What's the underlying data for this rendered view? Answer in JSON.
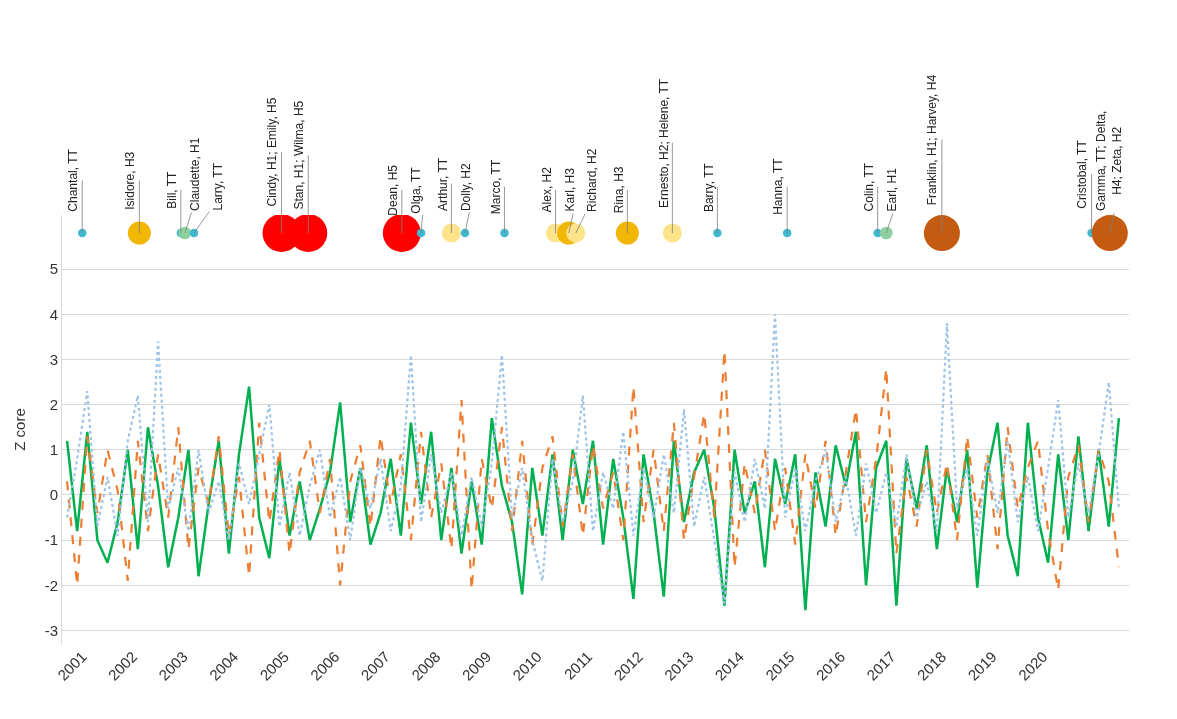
{
  "chart_data": {
    "type": "line",
    "ylabel": "Z core",
    "x": [
      2000.7,
      2000.9,
      2001.1,
      2001.3,
      2001.5,
      2001.7,
      2001.9,
      2002.1,
      2002.3,
      2002.5,
      2002.7,
      2002.9,
      2003.1,
      2003.3,
      2003.5,
      2003.7,
      2003.9,
      2004.1,
      2004.3,
      2004.5,
      2004.7,
      2004.9,
      2005.1,
      2005.3,
      2005.5,
      2005.7,
      2005.9,
      2006.1,
      2006.3,
      2006.5,
      2006.7,
      2006.9,
      2007.1,
      2007.3,
      2007.5,
      2007.7,
      2007.9,
      2008.1,
      2008.3,
      2008.5,
      2008.7,
      2008.9,
      2009.1,
      2009.3,
      2009.5,
      2009.7,
      2009.9,
      2010.1,
      2010.3,
      2010.5,
      2010.7,
      2010.9,
      2011.1,
      2011.3,
      2011.5,
      2011.7,
      2011.9,
      2012.1,
      2012.3,
      2012.5,
      2012.7,
      2012.9,
      2013.1,
      2013.3,
      2013.5,
      2013.7,
      2013.9,
      2014.1,
      2014.3,
      2014.5,
      2014.7,
      2014.9,
      2015.1,
      2015.3,
      2015.5,
      2015.7,
      2015.9,
      2016.1,
      2016.3,
      2016.5,
      2016.7,
      2016.9,
      2017.1,
      2017.3,
      2017.5,
      2017.7,
      2017.9,
      2018.1,
      2018.3,
      2018.5,
      2018.7,
      2018.9,
      2019.1,
      2019.3,
      2019.5,
      2019.7,
      2019.9,
      2020.1,
      2020.3,
      2020.5,
      2020.7,
      2020.9,
      2021.1,
      2021.3,
      2021.5
    ],
    "series": [
      {
        "color": "#00b050",
        "line_style": "solid",
        "values": [
          1.2,
          -0.8,
          1.4,
          -1.0,
          -1.5,
          -0.6,
          1.0,
          -1.2,
          1.5,
          0.2,
          -1.6,
          -0.5,
          1.0,
          -1.8,
          -0.2,
          1.2,
          -1.3,
          0.9,
          2.4,
          -0.5,
          -1.4,
          0.8,
          -0.9,
          0.3,
          -1.0,
          -0.3,
          0.5,
          2.05,
          -0.6,
          0.6,
          -1.1,
          -0.4,
          0.8,
          -0.9,
          1.6,
          -0.2,
          1.4,
          -1.0,
          0.6,
          -1.3,
          0.3,
          -1.1,
          1.7,
          0.2,
          -0.6,
          -2.2,
          0.6,
          -0.9,
          0.9,
          -1.0,
          1.0,
          -0.2,
          1.2,
          -1.1,
          0.8,
          -0.5,
          -2.3,
          0.9,
          -0.4,
          -2.25,
          1.2,
          -0.6,
          0.5,
          1.0,
          -0.3,
          -2.45,
          1.0,
          -0.4,
          0.3,
          -1.6,
          0.8,
          -0.2,
          0.9,
          -2.55,
          0.5,
          -0.7,
          1.1,
          0.2,
          1.4,
          -2.0,
          0.6,
          1.2,
          -2.45,
          0.8,
          -0.3,
          1.1,
          -1.2,
          0.6,
          -0.6,
          1.0,
          -2.05,
          0.5,
          1.6,
          -0.9,
          -1.8,
          1.6,
          -0.5,
          -1.5,
          0.9,
          -1.0,
          1.3,
          -0.8,
          1.0,
          -0.7,
          1.7
        ]
      },
      {
        "color": "#ed7d31",
        "line_style": "dashed",
        "values": [
          0.3,
          -2.0,
          1.3,
          -0.4,
          1.0,
          0.1,
          -1.9,
          1.2,
          -0.8,
          0.9,
          -0.5,
          1.5,
          -1.2,
          0.6,
          -0.2,
          1.3,
          -0.9,
          0.4,
          -1.8,
          1.6,
          -0.6,
          1.0,
          -1.3,
          0.5,
          1.2,
          -0.4,
          0.8,
          -2.0,
          0.3,
          1.1,
          -0.7,
          1.3,
          -0.2,
          0.9,
          -1.0,
          1.4,
          -0.5,
          0.7,
          -1.2,
          2.1,
          -2.1,
          0.8,
          -0.3,
          1.5,
          -0.8,
          1.2,
          -1.1,
          0.6,
          1.3,
          -0.7,
          0.9,
          -0.9,
          1.1,
          -0.3,
          0.5,
          -1.0,
          2.4,
          -0.6,
          1.0,
          -0.8,
          1.6,
          -1.0,
          0.4,
          1.8,
          -0.5,
          3.2,
          -1.6,
          0.7,
          -0.4,
          1.0,
          -0.8,
          0.6,
          -1.1,
          0.9,
          -0.3,
          1.2,
          -0.9,
          0.5,
          1.9,
          -0.6,
          0.8,
          2.8,
          -1.3,
          0.4,
          -0.7,
          1.0,
          -0.4,
          0.7,
          -1.0,
          1.3,
          -0.5,
          0.9,
          -1.2,
          1.5,
          -0.3,
          0.6,
          1.2,
          -0.8,
          -2.1,
          0.4,
          1.1,
          -0.6,
          1.0,
          0.3,
          -1.6
        ]
      },
      {
        "color": "#9dc3e6",
        "line_style": "dotted",
        "values": [
          -0.5,
          0.8,
          2.3,
          -0.7,
          0.4,
          -0.9,
          1.2,
          2.2,
          -0.6,
          3.4,
          -0.3,
          0.6,
          -0.8,
          1.0,
          -0.4,
          0.3,
          -1.0,
          0.7,
          -0.2,
          0.9,
          2.0,
          -0.7,
          0.5,
          -0.9,
          0.2,
          1.0,
          -0.5,
          0.4,
          -1.0,
          0.6,
          -0.3,
          0.8,
          -0.8,
          0.2,
          3.1,
          -0.6,
          0.9,
          -0.4,
          0.5,
          -0.9,
          0.4,
          -0.7,
          0.7,
          3.1,
          -0.5,
          0.6,
          -1.0,
          -1.9,
          0.8,
          -0.6,
          0.3,
          2.2,
          -0.8,
          0.5,
          -0.3,
          1.4,
          -0.9,
          0.6,
          -0.5,
          0.9,
          -0.4,
          1.9,
          -0.7,
          0.4,
          -1.0,
          -2.4,
          0.5,
          -0.6,
          0.8,
          -0.3,
          4.0,
          -0.5,
          0.6,
          -0.8,
          0.3,
          1.0,
          -0.6,
          0.4,
          -0.9,
          0.7,
          -0.4,
          0.5,
          -0.7,
          0.9,
          -0.5,
          0.3,
          -0.8,
          3.8,
          -0.3,
          0.6,
          -0.9,
          0.8,
          -0.4,
          1.2,
          -0.6,
          0.4,
          -0.8,
          0.6,
          2.1,
          -0.5,
          0.7,
          -0.4,
          0.9,
          2.5,
          -0.3
        ]
      },
      {
        "type": "bubble",
        "x": [
          2001.0,
          2002.13,
          2002.95,
          2003.03,
          2003.21,
          2004.94,
          2005.47,
          2007.32,
          2007.7,
          2008.3,
          2008.57,
          2009.35,
          2010.36,
          2010.62,
          2010.76,
          2011.78,
          2012.67,
          2013.56,
          2014.94,
          2016.73,
          2016.9,
          2018.0,
          2020.96,
          2021.32
        ],
        "values": [
          5.8,
          5.8,
          5.8,
          5.8,
          5.8,
          5.8,
          5.8,
          5.8,
          5.8,
          5.8,
          5.8,
          5.8,
          5.8,
          5.8,
          5.8,
          5.8,
          5.8,
          5.8,
          5.8,
          5.8,
          5.8,
          5.8,
          5.8,
          5.8
        ],
        "sizes": [
          0.05,
          0.37,
          0.05,
          0.11,
          0.05,
          1,
          1,
          1,
          0.05,
          0.25,
          0.05,
          0.05,
          0.25,
          0.37,
          0.25,
          0.37,
          0.25,
          0.05,
          0.05,
          0.05,
          0.11,
          0.9,
          0.05,
          0.9
        ],
        "colors": [
          "#3fb8d0",
          "#f2b705",
          "#3fb8d0",
          "#8fd19e",
          "#3fb8d0",
          "#ff0000",
          "#ff0000",
          "#ff0000",
          "#3fb8d0",
          "#fde38a",
          "#3fb8d0",
          "#3fb8d0",
          "#fde38a",
          "#f2b705",
          "#fde38a",
          "#f2b705",
          "#fde38a",
          "#3fb8d0",
          "#3fb8d0",
          "#3fb8d0",
          "#8fd19e",
          "#c55a11",
          "#3fb8d0",
          "#c55a11"
        ]
      }
    ],
    "annotations": [
      {
        "text": "Chantal, TT",
        "x": 2001.0,
        "y": 5.8
      },
      {
        "text": "Isidore, H3",
        "x": 2002.13,
        "y": 5.8
      },
      {
        "text": "Bill, TT",
        "x": 2002.95,
        "y": 5.8
      },
      {
        "text": "Claudette, H1",
        "x": 2003.03,
        "y": 5.8
      },
      {
        "text": "Larry, TT",
        "x": 2003.21,
        "y": 5.8
      },
      {
        "text": "Cindy, H1; Emily, H5",
        "x": 2004.94,
        "y": 5.8
      },
      {
        "text": "Stan, H1; Wilma, H5",
        "x": 2005.47,
        "y": 5.8
      },
      {
        "text": "Dean, H5",
        "x": 2007.32,
        "y": 5.8
      },
      {
        "text": "Olga, TT",
        "x": 2007.7,
        "y": 5.8
      },
      {
        "text": "Arthur, TT",
        "x": 2008.3,
        "y": 5.8
      },
      {
        "text": "Dolly, H2",
        "x": 2008.57,
        "y": 5.8
      },
      {
        "text": "Marco, TT",
        "x": 2009.35,
        "y": 5.8
      },
      {
        "text": "Alex, H2",
        "x": 2010.36,
        "y": 5.8
      },
      {
        "text": "Karl, H3",
        "x": 2010.62,
        "y": 5.8
      },
      {
        "text": "Richard, H2",
        "x": 2010.76,
        "y": 5.8
      },
      {
        "text": "Rina, H3",
        "x": 2011.78,
        "y": 5.8
      },
      {
        "text": "Ernesto, H2; Helene, TT",
        "x": 2012.67,
        "y": 5.8
      },
      {
        "text": "Barry, TT",
        "x": 2013.56,
        "y": 5.8
      },
      {
        "text": "Hanna, TT",
        "x": 2014.94,
        "y": 5.8
      },
      {
        "text": "Colin, TT",
        "x": 2016.73,
        "y": 5.8
      },
      {
        "text": "Earl, H1",
        "x": 2016.9,
        "y": 5.8
      },
      {
        "text": "Franklin, H1; Harvey, H4",
        "x": 2018.0,
        "y": 5.8
      },
      {
        "text": "Cristobal, TT",
        "x": 2020.96,
        "y": 5.8
      },
      {
        "text": "Gamma, TT; Delta,\nH4; Zeta, H2",
        "x": 2021.32,
        "y": 5.8
      }
    ],
    "xlim": [
      2000.6,
      2021.7
    ],
    "xticks": [
      2001,
      2002,
      2003,
      2004,
      2005,
      2006,
      2007,
      2008,
      2009,
      2010,
      2011,
      2012,
      2013,
      2014,
      2015,
      2016,
      2017,
      2018,
      2019,
      2020
    ],
    "ylim": [
      -3.3,
      6.2
    ],
    "yticks": [
      -3,
      -2,
      -1,
      0,
      1,
      2,
      3,
      4,
      5
    ],
    "grid": "y"
  }
}
